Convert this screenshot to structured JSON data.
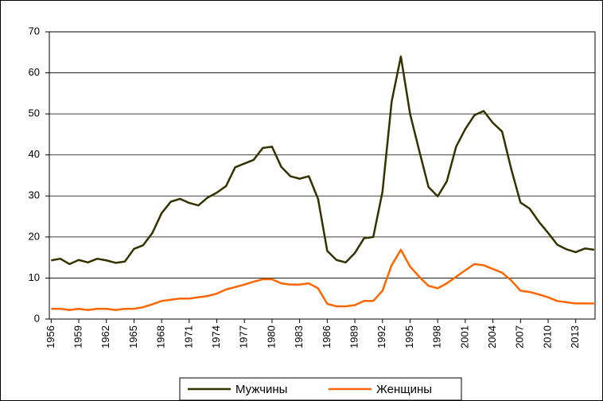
{
  "chart_data": {
    "type": "line",
    "x": [
      1956,
      1957,
      1958,
      1959,
      1960,
      1961,
      1962,
      1963,
      1964,
      1965,
      1966,
      1967,
      1968,
      1969,
      1970,
      1971,
      1972,
      1973,
      1974,
      1975,
      1976,
      1977,
      1978,
      1979,
      1980,
      1981,
      1982,
      1983,
      1984,
      1985,
      1986,
      1987,
      1988,
      1989,
      1990,
      1991,
      1992,
      1993,
      1994,
      1995,
      1996,
      1997,
      1998,
      1999,
      2000,
      2001,
      2002,
      2003,
      2004,
      2005,
      2006,
      2007,
      2008,
      2009,
      2010,
      2011,
      2012,
      2013,
      2014,
      2015
    ],
    "series": [
      {
        "name": "Мужчины",
        "color": "#333300",
        "values": [
          14.3,
          14.7,
          13.4,
          14.4,
          13.8,
          14.7,
          14.3,
          13.7,
          14.0,
          17.1,
          18.0,
          21.0,
          25.8,
          28.6,
          29.3,
          28.3,
          27.7,
          29.6,
          30.8,
          32.4,
          37.0,
          37.9,
          38.8,
          41.7,
          42.0,
          37.1,
          34.8,
          34.2,
          34.8,
          29.3,
          16.6,
          14.4,
          13.8,
          16.1,
          19.7,
          20.0,
          31.0,
          53.0,
          64.0,
          50.0,
          41.0,
          32.2,
          29.9,
          33.6,
          42.0,
          46.3,
          49.7,
          50.7,
          47.8,
          45.7,
          36.5,
          28.4,
          26.9,
          23.7,
          21.0,
          18.1,
          17.0,
          16.3,
          17.2,
          16.9
        ]
      },
      {
        "name": "Женщины",
        "color": "#ff6600",
        "values": [
          2.5,
          2.5,
          2.2,
          2.5,
          2.2,
          2.5,
          2.5,
          2.2,
          2.5,
          2.5,
          2.9,
          3.6,
          4.4,
          4.7,
          5.0,
          5.0,
          5.3,
          5.6,
          6.2,
          7.2,
          7.8,
          8.4,
          9.1,
          9.7,
          9.7,
          8.7,
          8.4,
          8.4,
          8.7,
          7.5,
          3.7,
          3.1,
          3.1,
          3.4,
          4.4,
          4.4,
          6.9,
          13.1,
          16.9,
          12.8,
          10.3,
          8.1,
          7.5,
          8.7,
          10.3,
          11.9,
          13.4,
          13.1,
          12.2,
          11.3,
          9.4,
          6.9,
          6.6,
          6.0,
          5.3,
          4.4,
          4.1,
          3.8,
          3.8,
          3.8
        ]
      }
    ],
    "xlim": [
      1955.8,
      2015.1
    ],
    "xticks": [
      1956,
      1959,
      1962,
      1965,
      1968,
      1971,
      1974,
      1977,
      1980,
      1983,
      1986,
      1989,
      1992,
      1995,
      1998,
      2001,
      2004,
      2007,
      2010,
      2013
    ],
    "ylim": [
      0,
      70
    ],
    "yticks": [
      0,
      10,
      20,
      30,
      40,
      50,
      60,
      70
    ],
    "grid": true,
    "legend": "bottom"
  }
}
